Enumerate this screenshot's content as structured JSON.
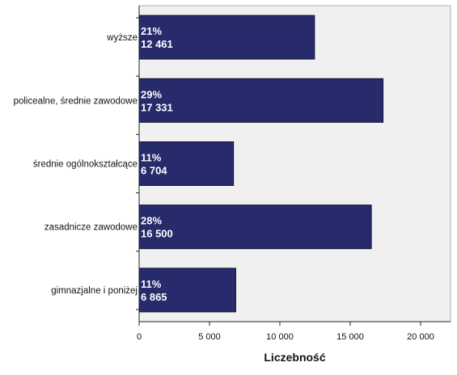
{
  "chart_data": {
    "type": "bar",
    "orientation": "horizontal",
    "title": "",
    "xlabel": "Liczebność",
    "ylabel": "",
    "xlim": [
      0,
      24000
    ],
    "xticks": [
      0,
      5000,
      10000,
      15000,
      20000
    ],
    "xtick_labels": [
      "0",
      "5 000",
      "10 000",
      "15 000",
      "20 000"
    ],
    "grid": false,
    "legend": "none",
    "categories": [
      "wyższe",
      "policealne, średnie zawodowe",
      "średnie ogólnokształcące",
      "zasadnicze zawodowe",
      "gimnazjalne i poniżej"
    ],
    "values": [
      12461,
      17331,
      6704,
      16500,
      6865
    ],
    "percent_labels": [
      "21%",
      "29%",
      "11%",
      "28%",
      "11%"
    ],
    "value_labels": [
      "12 461",
      "17 331",
      "6 704",
      "16 500",
      "6 865"
    ],
    "colors": {
      "bar_fill": "#272a6b",
      "bar_stroke": "#0f1133",
      "plot_background": "#f0f0f0",
      "page_background": "#ffffff"
    }
  }
}
